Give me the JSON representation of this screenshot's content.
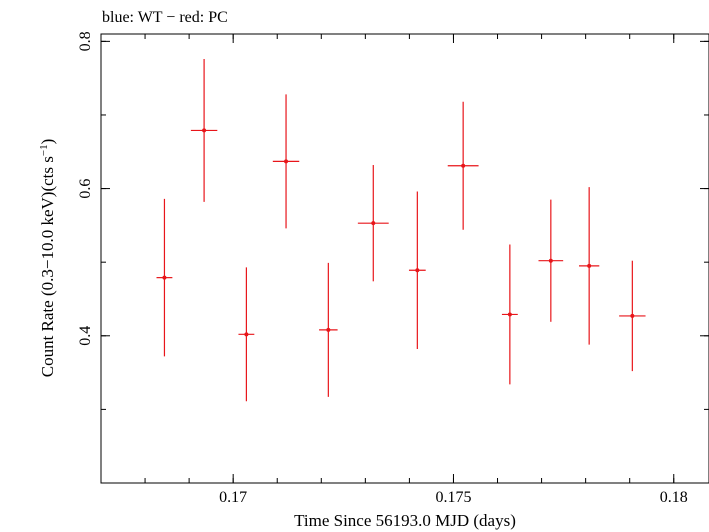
{
  "chart_data": {
    "type": "scatter",
    "title": "blue: WT − red: PC",
    "xlabel": "Time Since 56193.0 MJD (days)",
    "ylabel_main": "Count Rate (0.3−10.0 keV)(cts s",
    "ylabel_sup": "−1",
    "ylabel_end": ")",
    "xlim": [
      0.167,
      0.1808
    ],
    "ylim": [
      0.2,
      0.81
    ],
    "x_ticks": [
      0.17,
      0.175,
      0.18
    ],
    "x_tick_labels": [
      "0.17",
      "0.175",
      "0.18"
    ],
    "x_minor_step": 0.001,
    "y_ticks": [
      0.4,
      0.6,
      0.8
    ],
    "y_tick_labels": [
      "0.4",
      "0.6",
      "0.8"
    ],
    "y_minor_step": 0.1,
    "grid": false,
    "series": [
      {
        "color": "#e8151a",
        "points": [
          {
            "x": 0.16844,
            "y": 0.479,
            "xerr": 0.00018,
            "yerr": 0.107
          },
          {
            "x": 0.16934,
            "y": 0.679,
            "xerr": 0.0003,
            "yerr": 0.097
          },
          {
            "x": 0.1703,
            "y": 0.402,
            "xerr": 0.00018,
            "yerr": 0.091
          },
          {
            "x": 0.1712,
            "y": 0.637,
            "xerr": 0.0003,
            "yerr": 0.091
          },
          {
            "x": 0.17216,
            "y": 0.408,
            "xerr": 0.00021,
            "yerr": 0.091
          },
          {
            "x": 0.17318,
            "y": 0.553,
            "xerr": 0.00035,
            "yerr": 0.079
          },
          {
            "x": 0.17418,
            "y": 0.489,
            "xerr": 0.00019,
            "yerr": 0.107
          },
          {
            "x": 0.17522,
            "y": 0.631,
            "xerr": 0.00035,
            "yerr": 0.087
          },
          {
            "x": 0.17628,
            "y": 0.429,
            "xerr": 0.00018,
            "yerr": 0.095
          },
          {
            "x": 0.17721,
            "y": 0.502,
            "xerr": 0.00028,
            "yerr": 0.083
          },
          {
            "x": 0.17808,
            "y": 0.495,
            "xerr": 0.00023,
            "yerr": 0.107
          },
          {
            "x": 0.17906,
            "y": 0.427,
            "xerr": 0.0003,
            "yerr": 0.075
          }
        ]
      }
    ]
  }
}
